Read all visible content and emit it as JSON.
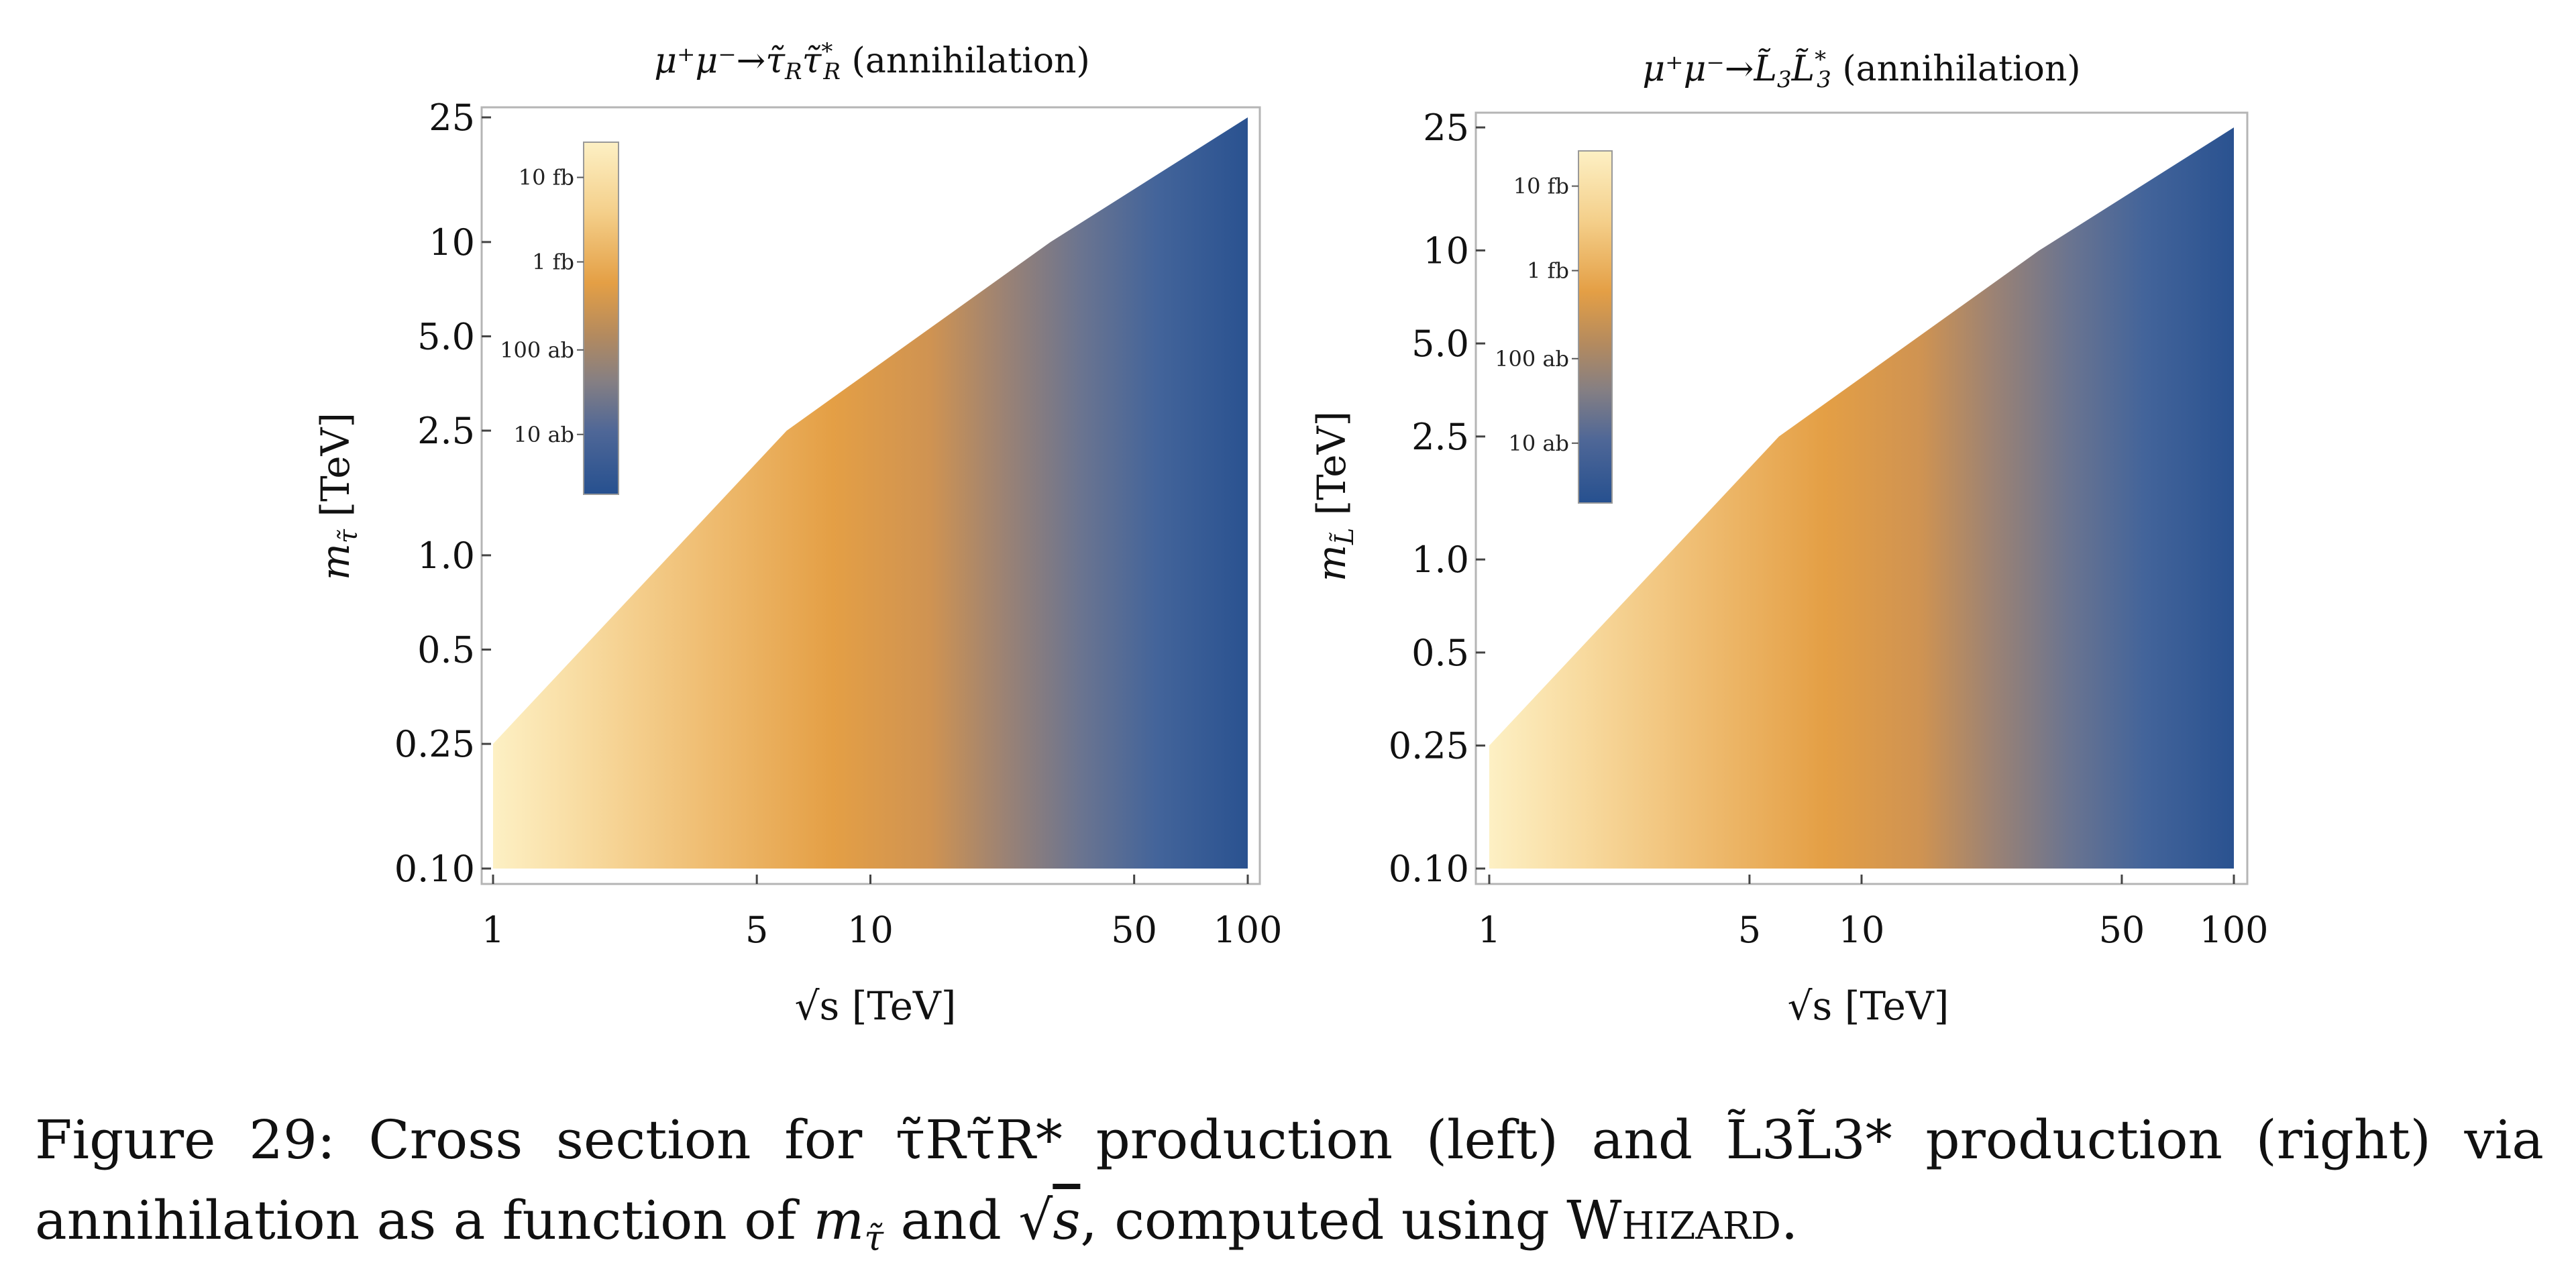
{
  "chart_data": [
    {
      "type": "heatmap",
      "title": "μ⁺μ⁻→τ̃Rτ̃R* (annihilation)",
      "title_parts": {
        "process": "μ⁺μ⁻→τ̃",
        "sub1": "R",
        "pair": "τ̃",
        "sup2": "*",
        "sub2": "R",
        "suffix": " (annihilation)"
      },
      "xlabel": "√s [TeV]",
      "ylabel": "mτ̃ [TeV]",
      "ylabel_parts": {
        "base": "m",
        "sub": "τ̃",
        "unit": " [TeV]"
      },
      "x_scale": "log",
      "y_scale": "log",
      "xlim": [
        1,
        100
      ],
      "ylim": [
        0.1,
        25
      ],
      "x_ticks": [
        1,
        5,
        10,
        50,
        100
      ],
      "x_tick_labels": [
        "1",
        "5",
        "10",
        "50",
        "100"
      ],
      "y_ticks": [
        0.1,
        0.25,
        0.5,
        1.0,
        2.5,
        5.0,
        10,
        25
      ],
      "y_tick_labels": [
        "0.10",
        "0.25",
        "0.5",
        "1.0",
        "2.5",
        "5.0",
        "10",
        "25"
      ],
      "region_boundary": [
        [
          1,
          0.1
        ],
        [
          1,
          0.25
        ],
        [
          6,
          2.5
        ],
        [
          30,
          10
        ],
        [
          100,
          25
        ],
        [
          100,
          0.1
        ]
      ],
      "colorbar": {
        "labels": [
          "10 fb",
          "1 fb",
          "100 ab",
          "10 ab"
        ],
        "colors": [
          "#fdeeb8",
          "#e59c44",
          "#8b8585",
          "#2a5290"
        ]
      }
    },
    {
      "type": "heatmap",
      "title": "μ⁺μ⁻→L̃3L̃3* (annihilation)",
      "title_parts": {
        "process": "μ⁺μ⁻→L̃",
        "sub1": "3",
        "pair": "L̃",
        "sup2": "*",
        "sub2": "3",
        "suffix": " (annihilation)"
      },
      "xlabel": "√s [TeV]",
      "ylabel": "mL̃ [TeV]",
      "ylabel_parts": {
        "base": "m",
        "sub": "L̃",
        "unit": " [TeV]"
      },
      "x_scale": "log",
      "y_scale": "log",
      "xlim": [
        1,
        100
      ],
      "ylim": [
        0.1,
        25
      ],
      "x_ticks": [
        1,
        5,
        10,
        50,
        100
      ],
      "x_tick_labels": [
        "1",
        "5",
        "10",
        "50",
        "100"
      ],
      "y_ticks": [
        0.1,
        0.25,
        0.5,
        1.0,
        2.5,
        5.0,
        10,
        25
      ],
      "y_tick_labels": [
        "0.10",
        "0.25",
        "0.5",
        "1.0",
        "2.5",
        "5.0",
        "10",
        "25"
      ],
      "region_boundary": [
        [
          1,
          0.1
        ],
        [
          1,
          0.25
        ],
        [
          6,
          2.5
        ],
        [
          30,
          10
        ],
        [
          100,
          25
        ],
        [
          100,
          0.1
        ]
      ],
      "colorbar": {
        "labels": [
          "10 fb",
          "1 fb",
          "100 ab",
          "10 ab"
        ],
        "colors": [
          "#fdeeb8",
          "#e59c44",
          "#8b8585",
          "#2a5290"
        ]
      }
    }
  ],
  "caption": {
    "line1_words": [
      "Figure",
      "29:",
      "Cross",
      "section",
      "for",
      "τ̃Rτ̃R*",
      "production",
      "(left)",
      "and",
      "L̃3L̃3*",
      "production",
      "(right)",
      "via"
    ],
    "line2_prefix": "annihilation as a function of ",
    "line2_mid": " and ",
    "line2_suffix": ", computed using ",
    "whizard": "Whizard",
    "end": "."
  }
}
